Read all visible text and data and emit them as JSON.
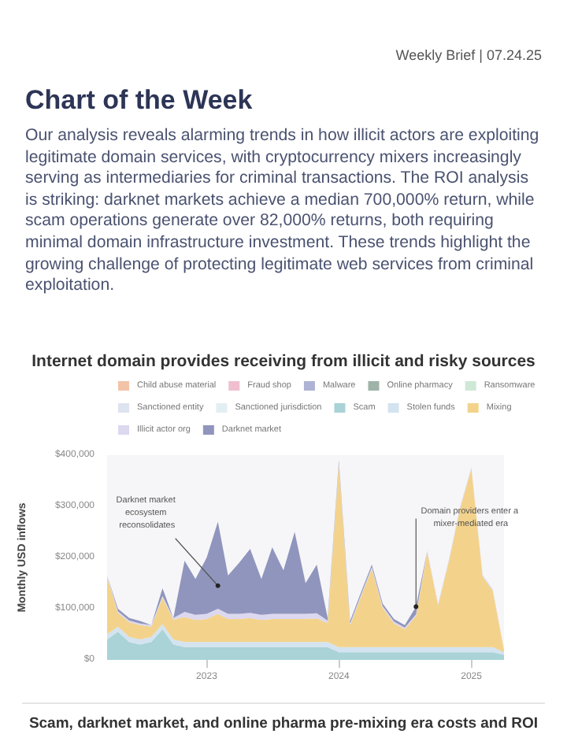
{
  "chart_data": {
    "type": "area",
    "stacked": true,
    "title": "Internet domain provides receiving from illicit and risky sources",
    "ylabel": "Monthly USD inflows",
    "x": [
      "2022-04",
      "2022-05",
      "2022-06",
      "2022-07",
      "2022-08",
      "2022-09",
      "2022-10",
      "2022-11",
      "2022-12",
      "2023-01",
      "2023-02",
      "2023-03",
      "2023-04",
      "2023-05",
      "2023-06",
      "2023-07",
      "2023-08",
      "2023-09",
      "2023-10",
      "2023-11",
      "2023-12",
      "2024-01",
      "2024-02",
      "2024-03",
      "2024-04",
      "2024-05",
      "2024-06",
      "2024-07",
      "2024-08",
      "2024-09",
      "2024-10",
      "2024-11",
      "2024-12",
      "2025-01",
      "2025-02",
      "2025-03",
      "2025-04"
    ],
    "xlim": [
      "2022-04",
      "2025-04"
    ],
    "xticks": [
      "2023",
      "2024",
      "2025"
    ],
    "ylim": [
      0,
      400000
    ],
    "yticks": [
      {
        "value": 0,
        "label": "$0"
      },
      {
        "value": 100000,
        "label": "$100,000"
      },
      {
        "value": 200000,
        "label": "$200,000"
      },
      {
        "value": 300000,
        "label": "$300,000"
      },
      {
        "value": 400000,
        "label": "$400,000"
      }
    ],
    "legend": "top",
    "series": [
      {
        "name": "Child abuse material",
        "color": "#f3c3a8",
        "values": [
          null,
          null,
          null,
          null,
          null,
          null,
          null,
          null,
          null,
          null,
          null,
          null,
          null,
          null,
          null,
          null,
          null,
          null,
          null,
          null,
          null,
          null,
          null,
          null,
          null,
          null,
          null,
          null,
          null,
          null,
          null,
          null,
          null,
          null,
          null,
          null,
          null
        ]
      },
      {
        "name": "Fraud shop",
        "color": "#f0bfcf",
        "values": [
          null,
          null,
          null,
          null,
          null,
          null,
          null,
          null,
          null,
          null,
          null,
          null,
          null,
          null,
          null,
          null,
          null,
          null,
          null,
          null,
          null,
          null,
          null,
          null,
          null,
          null,
          null,
          null,
          null,
          null,
          null,
          null,
          null,
          null,
          null,
          null,
          null
        ]
      },
      {
        "name": "Malware",
        "color": "#aeb3d3",
        "values": [
          null,
          null,
          null,
          null,
          null,
          null,
          null,
          null,
          null,
          null,
          null,
          null,
          null,
          null,
          null,
          null,
          null,
          null,
          null,
          null,
          null,
          null,
          null,
          null,
          null,
          null,
          null,
          null,
          null,
          null,
          null,
          null,
          null,
          null,
          null,
          null,
          null
        ]
      },
      {
        "name": "Online pharmacy",
        "color": "#9fb3a8",
        "values": [
          null,
          null,
          null,
          null,
          null,
          null,
          null,
          null,
          null,
          null,
          null,
          null,
          null,
          null,
          null,
          null,
          null,
          null,
          null,
          null,
          null,
          null,
          null,
          null,
          null,
          null,
          null,
          null,
          null,
          null,
          null,
          null,
          null,
          null,
          null,
          null,
          null
        ]
      },
      {
        "name": "Ransomware",
        "color": "#cfe8d6",
        "values": [
          null,
          null,
          null,
          null,
          null,
          null,
          null,
          null,
          null,
          null,
          null,
          null,
          null,
          null,
          null,
          null,
          null,
          null,
          null,
          null,
          null,
          null,
          null,
          null,
          null,
          null,
          null,
          null,
          null,
          null,
          null,
          null,
          null,
          null,
          null,
          null,
          null
        ]
      },
      {
        "name": "Sanctioned entity",
        "color": "#dde3ef",
        "values": [
          null,
          null,
          null,
          null,
          null,
          null,
          null,
          null,
          null,
          null,
          null,
          null,
          null,
          null,
          null,
          null,
          null,
          null,
          null,
          null,
          null,
          null,
          null,
          null,
          null,
          null,
          null,
          null,
          null,
          null,
          null,
          null,
          null,
          null,
          null,
          null,
          null
        ]
      },
      {
        "name": "Sanctioned jurisdiction",
        "color": "#e3eef3",
        "values": [
          null,
          null,
          null,
          null,
          null,
          null,
          null,
          null,
          null,
          null,
          null,
          null,
          null,
          null,
          null,
          null,
          null,
          null,
          null,
          null,
          null,
          null,
          null,
          null,
          null,
          null,
          null,
          null,
          null,
          null,
          null,
          null,
          null,
          null,
          null,
          null,
          null
        ]
      },
      {
        "name": "Scam",
        "color": "#a9d3d6",
        "values": [
          40000,
          55000,
          35000,
          30000,
          35000,
          60000,
          30000,
          25000,
          25000,
          25000,
          25000,
          25000,
          25000,
          25000,
          25000,
          25000,
          25000,
          25000,
          25000,
          25000,
          25000,
          15000,
          15000,
          15000,
          15000,
          15000,
          15000,
          15000,
          15000,
          15000,
          15000,
          15000,
          15000,
          15000,
          15000,
          15000,
          10000
        ]
      },
      {
        "name": "Stolen funds",
        "color": "#d3e3f0",
        "values": [
          10000,
          10000,
          10000,
          10000,
          10000,
          10000,
          10000,
          10000,
          10000,
          10000,
          10000,
          10000,
          10000,
          10000,
          10000,
          10000,
          10000,
          10000,
          10000,
          10000,
          10000,
          10000,
          10000,
          10000,
          10000,
          10000,
          10000,
          10000,
          10000,
          10000,
          10000,
          10000,
          10000,
          10000,
          10000,
          10000,
          5000
        ]
      },
      {
        "name": "Mixing",
        "color": "#f3d38c",
        "values": [
          112000,
          27000,
          29000,
          28000,
          20000,
          52000,
          39000,
          49000,
          43000,
          45000,
          55000,
          45000,
          45000,
          47000,
          43000,
          45000,
          45000,
          45000,
          45000,
          46000,
          37000,
          357000,
          43000,
          97000,
          153000,
          77000,
          47000,
          35000,
          61000,
          186000,
          82000,
          172000,
          272000,
          349000,
          138000,
          110000,
          5000
        ]
      },
      {
        "name": "Illicit actor org",
        "color": "#dcd8f0",
        "values": [
          3000,
          3000,
          3000,
          3000,
          3000,
          3000,
          3000,
          10000,
          10000,
          10000,
          10000,
          10000,
          10000,
          10000,
          10000,
          10000,
          10000,
          10000,
          10000,
          10000,
          5000,
          3000,
          3000,
          3000,
          3000,
          3000,
          3000,
          3000,
          3000,
          3000,
          3000,
          3000,
          3000,
          3000,
          3000,
          3000,
          0
        ]
      },
      {
        "name": "Darknet market",
        "color": "#9095bd",
        "values": [
          0,
          5000,
          5000,
          5000,
          0,
          15000,
          0,
          100000,
          70000,
          110000,
          170000,
          75000,
          100000,
          125000,
          70000,
          130000,
          85000,
          160000,
          60000,
          95000,
          5000,
          5000,
          5000,
          5000,
          5000,
          5000,
          5000,
          5000,
          15000,
          0,
          0,
          0,
          0,
          0,
          0,
          0,
          0
        ]
      }
    ],
    "annotations": [
      "Weekly Brief | 07.24.25",
      "Chart of the Week",
      "Our analysis reveals alarming trends in how illicit actors are exploiting legitimate domain services, with cryptocurrency mixers increasingly serving as intermediaries for criminal transactions. The ROI analysis is striking: darknet markets achieve a median 700,000% return, while scam operations generate over 82,000% returns, both requiring minimal domain infrastructure investment. These trends highlight the growing challenge of protecting legitimate web services from criminal exploitation.",
      {
        "text": "Darknet market ecosystem reconsolidates",
        "x": "2023-02",
        "y": 145000
      },
      {
        "text": "Domain providers enter a mixer-mediated era",
        "x": "2024-08",
        "y": 104000
      },
      "Scam, darknet market, and online pharma pre-mixing era costs and ROI"
    ]
  }
}
